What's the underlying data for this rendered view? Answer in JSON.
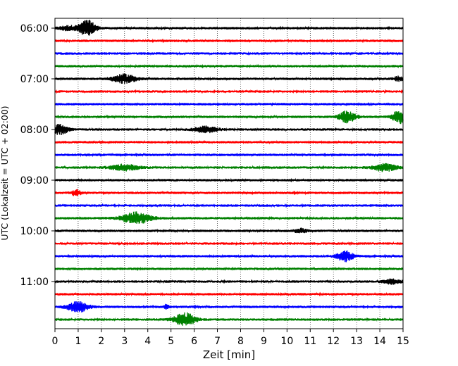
{
  "chart_data": {
    "type": "line",
    "title": "",
    "xlabel": "Zeit  [min]",
    "ylabel": "UTC (Lokalzeit = UTC + 02:00)",
    "xlim": [
      0,
      15
    ],
    "xticks": [
      "0",
      "1",
      "2",
      "3",
      "4",
      "5",
      "6",
      "7",
      "8",
      "9",
      "10",
      "11",
      "12",
      "13",
      "14",
      "15"
    ],
    "yticks": [
      "06:00",
      "07:00",
      "08:00",
      "09:00",
      "10:00",
      "11:00"
    ],
    "grid": "vertical dotted lines at each minute",
    "trace_interval_minutes": 15,
    "trace_colors": [
      "#000000",
      "#ff0000",
      "#0000ff",
      "#008000"
    ],
    "traces": [
      {
        "start": "06:00",
        "color": "#000000",
        "events": [
          {
            "t": 1.4,
            "amp": 11,
            "width": 0.35
          },
          {
            "t": 0.6,
            "amp": 3,
            "width": 0.4
          }
        ]
      },
      {
        "start": "06:15",
        "color": "#ff0000",
        "events": []
      },
      {
        "start": "06:30",
        "color": "#0000ff",
        "events": []
      },
      {
        "start": "06:45",
        "color": "#008000",
        "events": []
      },
      {
        "start": "07:00",
        "color": "#000000",
        "events": [
          {
            "t": 3.0,
            "amp": 6,
            "width": 0.5
          },
          {
            "t": 14.8,
            "amp": 3,
            "width": 0.2
          }
        ]
      },
      {
        "start": "07:15",
        "color": "#ff0000",
        "events": []
      },
      {
        "start": "07:30",
        "color": "#0000ff",
        "events": []
      },
      {
        "start": "07:45",
        "color": "#008000",
        "events": [
          {
            "t": 12.6,
            "amp": 8,
            "width": 0.35
          },
          {
            "t": 14.85,
            "amp": 9,
            "width": 0.3
          }
        ]
      },
      {
        "start": "08:00",
        "color": "#000000",
        "events": [
          {
            "t": 0.2,
            "amp": 7,
            "width": 0.35
          },
          {
            "t": 6.5,
            "amp": 4,
            "width": 0.5
          }
        ]
      },
      {
        "start": "08:15",
        "color": "#ff0000",
        "events": []
      },
      {
        "start": "08:30",
        "color": "#0000ff",
        "events": []
      },
      {
        "start": "08:45",
        "color": "#008000",
        "events": [
          {
            "t": 3.0,
            "amp": 4,
            "width": 0.6
          },
          {
            "t": 14.2,
            "amp": 5,
            "width": 0.5
          }
        ]
      },
      {
        "start": "09:00",
        "color": "#000000",
        "events": []
      },
      {
        "start": "09:15",
        "color": "#ff0000",
        "events": [
          {
            "t": 0.9,
            "amp": 4,
            "width": 0.2
          }
        ]
      },
      {
        "start": "09:30",
        "color": "#0000ff",
        "events": []
      },
      {
        "start": "09:45",
        "color": "#008000",
        "events": [
          {
            "t": 3.5,
            "amp": 8,
            "width": 0.6
          }
        ]
      },
      {
        "start": "10:00",
        "color": "#000000",
        "events": [
          {
            "t": 10.6,
            "amp": 3,
            "width": 0.25
          }
        ]
      },
      {
        "start": "10:15",
        "color": "#ff0000",
        "events": []
      },
      {
        "start": "10:30",
        "color": "#0000ff",
        "events": [
          {
            "t": 12.5,
            "amp": 7,
            "width": 0.35
          }
        ]
      },
      {
        "start": "10:45",
        "color": "#008000",
        "events": []
      },
      {
        "start": "11:00",
        "color": "#000000",
        "events": [
          {
            "t": 14.5,
            "amp": 3,
            "width": 0.4
          }
        ]
      },
      {
        "start": "11:15",
        "color": "#ff0000",
        "events": []
      },
      {
        "start": "11:30",
        "color": "#0000ff",
        "events": [
          {
            "t": 1.0,
            "amp": 7,
            "width": 0.45
          },
          {
            "t": 4.8,
            "amp": 3,
            "width": 0.1
          }
        ]
      },
      {
        "start": "11:45",
        "color": "#008000",
        "events": [
          {
            "t": 5.6,
            "amp": 9,
            "width": 0.45
          }
        ]
      }
    ]
  }
}
